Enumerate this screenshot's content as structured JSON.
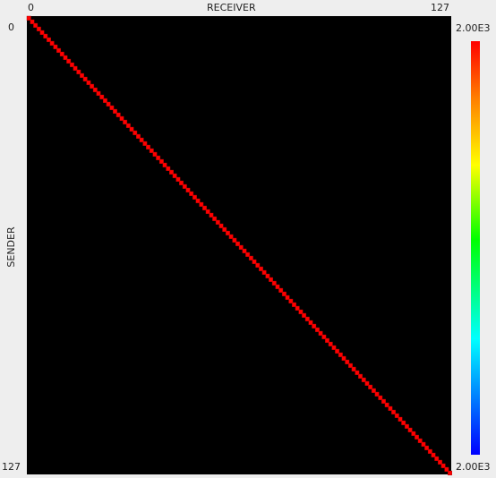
{
  "chart_data": {
    "type": "heatmap",
    "xlabel": "RECEIVER",
    "ylabel": "SENDER",
    "x_range": [
      0,
      127
    ],
    "y_range": [
      0,
      127
    ],
    "x_tick_labels": [
      "0",
      "127"
    ],
    "y_tick_labels": [
      "0",
      "127"
    ],
    "pattern": "diagonal",
    "diagonal_value": 2000,
    "off_diagonal_value": 0,
    "colorbar": {
      "max_label": "2.00E3",
      "min_label": "2.00E3",
      "colors": [
        "#ff0000",
        "#ff8000",
        "#ffff00",
        "#00ff00",
        "#00ffff",
        "#0080ff",
        "#0000ff"
      ]
    },
    "colors": {
      "background": "#000000",
      "cell": "#ff0000",
      "cell_border": "#a00000"
    }
  }
}
